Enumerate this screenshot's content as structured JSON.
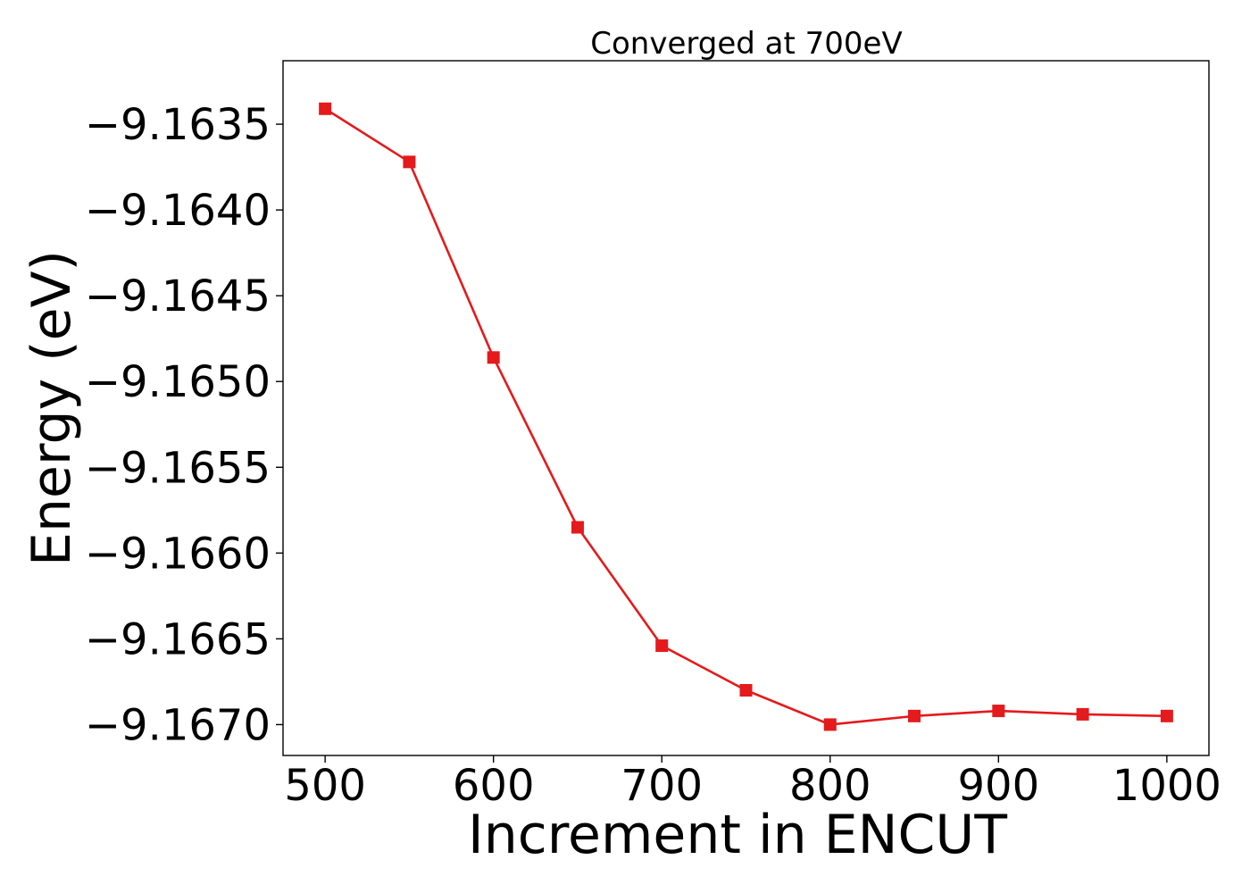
{
  "chart_data": {
    "type": "line",
    "title": "Converged at 700eV",
    "xlabel": "Increment in ENCUT",
    "ylabel": "Energy (eV)",
    "xlim": [
      475,
      1025
    ],
    "ylim": [
      -9.16718,
      -9.16313
    ],
    "xticks": [
      500,
      600,
      700,
      800,
      900,
      1000
    ],
    "xtick_labels": [
      "500",
      "600",
      "700",
      "800",
      "900",
      "1000"
    ],
    "yticks": [
      -9.1635,
      -9.164,
      -9.1645,
      -9.165,
      -9.1655,
      -9.166,
      -9.1665,
      -9.167
    ],
    "ytick_labels": [
      "−9.1635",
      "−9.1640",
      "−9.1645",
      "−9.1650",
      "−9.1655",
      "−9.1660",
      "−9.1665",
      "−9.1670"
    ],
    "grid": false,
    "legend": "none",
    "series": [
      {
        "color": "#e41a1c",
        "marker": "square",
        "x": [
          500,
          550,
          600,
          650,
          700,
          750,
          800,
          850,
          900,
          950,
          1000
        ],
        "y": [
          -9.16341,
          -9.16372,
          -9.16486,
          -9.16585,
          -9.16654,
          -9.1668,
          -9.167,
          -9.16695,
          -9.16692,
          -9.16694,
          -9.16695
        ]
      }
    ]
  }
}
